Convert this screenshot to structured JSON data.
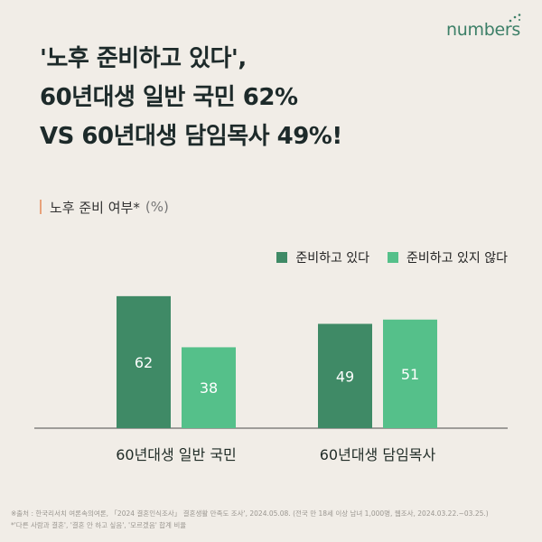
{
  "brand": {
    "logo_text": "numbers"
  },
  "headline": [
    "'노후 준비하고 있다',",
    "60년대생 일반 국민 62%",
    "VS 60년대생 담임목사 49%!"
  ],
  "subheading": {
    "label": "노후 준비 여부*",
    "unit": "(%)"
  },
  "colors": {
    "series_prepared": "#3f8a66",
    "series_not_prepared": "#55c08a",
    "accent_bar": "#e8a27a",
    "baseline": "#4b4b4b"
  },
  "chart_data": {
    "type": "bar",
    "categories": [
      "60년대생 일반 국민",
      "60년대생 담임목사"
    ],
    "series": [
      {
        "name": "준비하고 있다",
        "values": [
          62,
          49
        ]
      },
      {
        "name": "준비하고 있지 않다",
        "values": [
          38,
          51
        ]
      }
    ],
    "ylim": [
      0,
      70
    ],
    "legend_position": "top-right",
    "grid": false
  },
  "footnotes": [
    "※출처 : 한국리서치 여론속의여론, 「2024 결혼인식조사」 결혼생활 만족도 조사', 2024.05.08. (전국 만 18세 이상 남녀 1,000명, 웹조사,  2024.03.22.~03.25.)",
    "*'다른 사람과 결혼', '결혼 안 하고 싶음', '모르겠음' 합계 비율"
  ]
}
